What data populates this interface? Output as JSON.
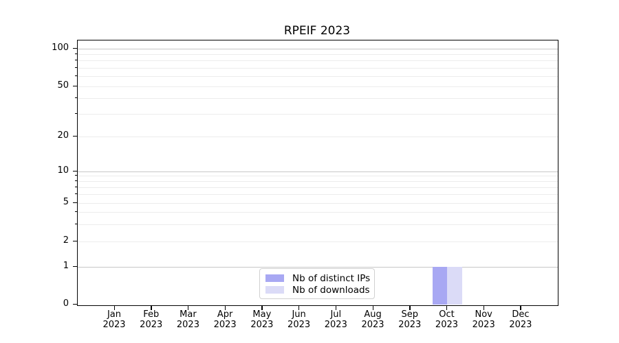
{
  "chart": {
    "title": "RPEIF 2023",
    "legend": {
      "items": [
        {
          "label": "Nb of distinct IPs",
          "color": "#a8a8f3"
        },
        {
          "label": "Nb of downloads",
          "color": "#dbdbf7"
        }
      ]
    },
    "chart_data": {
      "type": "bar",
      "title": "RPEIF 2023",
      "xlabel": "",
      "ylabel": "",
      "categories": [
        "Jan 2023",
        "Feb 2023",
        "Mar 2023",
        "Apr 2023",
        "May 2023",
        "Jun 2023",
        "Jul 2023",
        "Aug 2023",
        "Sep 2023",
        "Oct 2023",
        "Nov 2023",
        "Dec 2023"
      ],
      "series": [
        {
          "name": "Nb of distinct IPs",
          "color": "#a8a8f3",
          "values": [
            0,
            0,
            0,
            0,
            0,
            0,
            0,
            0,
            0,
            1,
            0,
            0
          ]
        },
        {
          "name": "Nb of downloads",
          "color": "#dbdbf7",
          "values": [
            0,
            0,
            0,
            0,
            0,
            0,
            0,
            0,
            0,
            1,
            0,
            0
          ]
        }
      ],
      "yscale": "symlog",
      "ylim": [
        0,
        117
      ],
      "yticks_labeled": [
        0,
        1,
        2,
        5,
        10,
        20,
        50,
        100
      ],
      "ygrid_major": [
        1,
        10,
        100
      ],
      "ygrid_minor": [
        2,
        3,
        4,
        5,
        6,
        7,
        8,
        9,
        20,
        30,
        40,
        50,
        60,
        70,
        80,
        90
      ],
      "grid": "horizontal",
      "legend_position": "lower center"
    }
  }
}
